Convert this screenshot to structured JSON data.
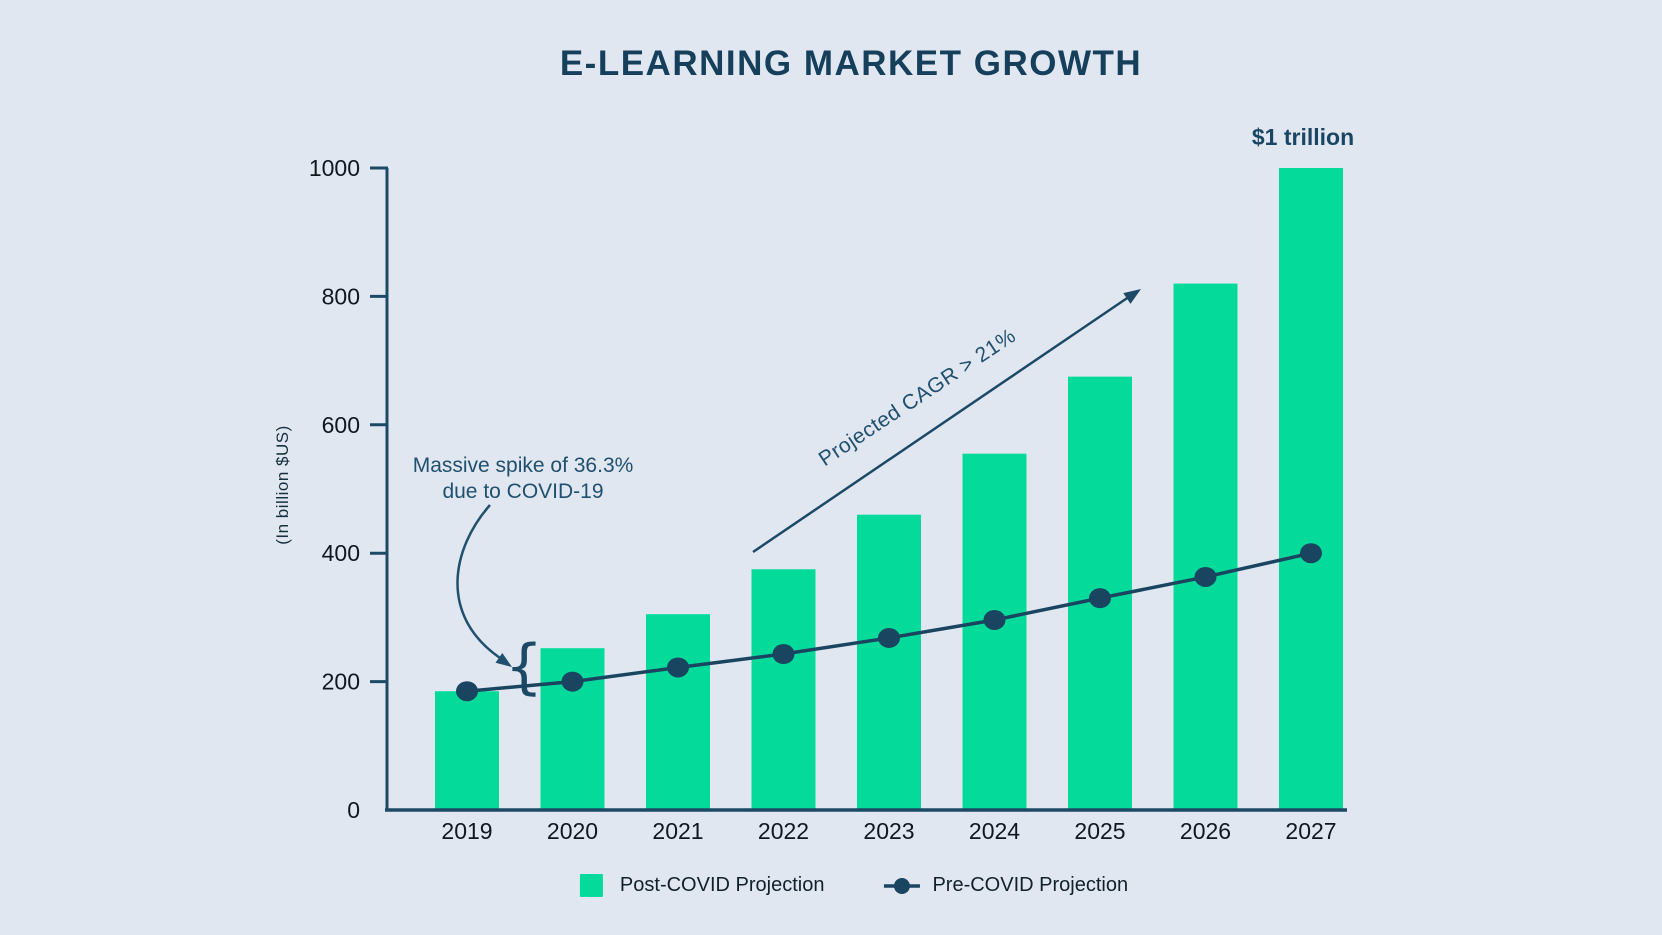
{
  "title": "E-LEARNING MARKET GROWTH",
  "colors": {
    "background": "#E1E7F1",
    "bar_green": "#04DB9B",
    "line_navy": "#1A4560",
    "axis_navy": "#1C4A66",
    "title_navy": "#153F5B",
    "annotation_navy": "#20506E",
    "axis_label_dark": "#10181F"
  },
  "chart_data": {
    "type": "bar",
    "title": "E-LEARNING MARKET GROWTH",
    "xlabel": "",
    "ylabel": "(In billion $US)",
    "ylim": [
      0,
      1000
    ],
    "yticks": [
      0,
      200,
      400,
      600,
      800,
      1000
    ],
    "grid": false,
    "legend_position": "bottom",
    "categories": [
      "2019",
      "2020",
      "2021",
      "2022",
      "2023",
      "2024",
      "2025",
      "2026",
      "2027"
    ],
    "series": [
      {
        "name": "Post-COVID Projection",
        "type": "bar",
        "color": "#04DB9B",
        "values": [
          185,
          252,
          305,
          375,
          460,
          555,
          675,
          820,
          1000
        ]
      },
      {
        "name": "Pre-COVID Projection",
        "type": "line",
        "color": "#1A4560",
        "values": [
          185,
          200,
          222,
          243,
          268,
          296,
          330,
          363,
          400
        ]
      }
    ],
    "annotations": [
      {
        "id": "spike",
        "text_line1": "Massive spike of 36.3%",
        "text_line2": "due to COVID-19",
        "brace_glyph": "{"
      },
      {
        "id": "cagr",
        "text": "Projected CAGR > 21%"
      },
      {
        "id": "trillion",
        "text": "$1 trillion"
      }
    ]
  },
  "legend": {
    "items": [
      {
        "label": "Post-COVID Projection",
        "marker": "square"
      },
      {
        "label": "Pre-COVID Projection",
        "marker": "line-dot"
      }
    ]
  }
}
